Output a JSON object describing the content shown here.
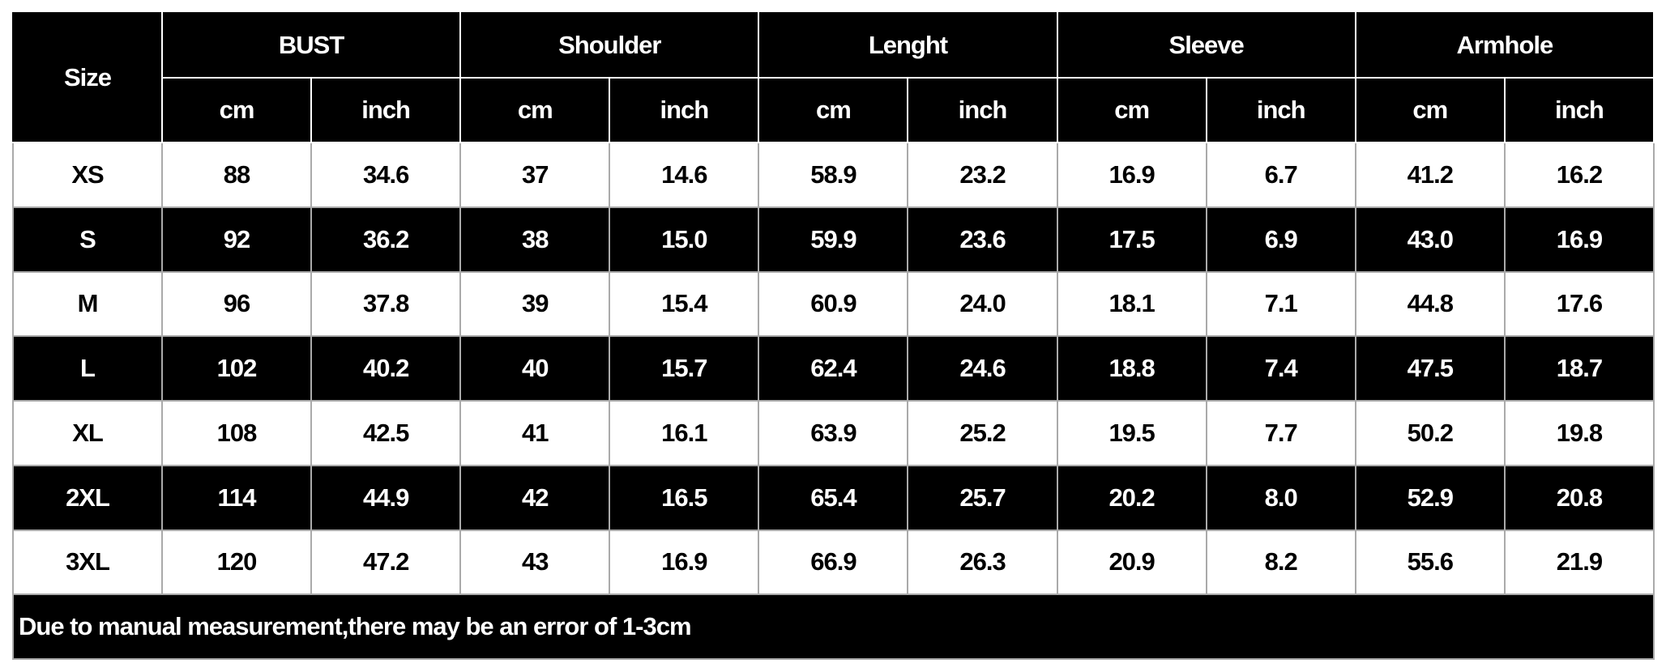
{
  "table": {
    "size_header": "Size",
    "groups": [
      "BUST",
      "Shoulder",
      "Lenght",
      "Sleeve",
      "Armhole"
    ],
    "units": [
      "cm",
      "inch"
    ],
    "rows": [
      {
        "size": "XS",
        "values": [
          "88",
          "34.6",
          "37",
          "14.6",
          "58.9",
          "23.2",
          "16.9",
          "6.7",
          "41.2",
          "16.2"
        ],
        "theme": "light"
      },
      {
        "size": "S",
        "values": [
          "92",
          "36.2",
          "38",
          "15.0",
          "59.9",
          "23.6",
          "17.5",
          "6.9",
          "43.0",
          "16.9"
        ],
        "theme": "dark"
      },
      {
        "size": "M",
        "values": [
          "96",
          "37.8",
          "39",
          "15.4",
          "60.9",
          "24.0",
          "18.1",
          "7.1",
          "44.8",
          "17.6"
        ],
        "theme": "light"
      },
      {
        "size": "L",
        "values": [
          "102",
          "40.2",
          "40",
          "15.7",
          "62.4",
          "24.6",
          "18.8",
          "7.4",
          "47.5",
          "18.7"
        ],
        "theme": "dark"
      },
      {
        "size": "XL",
        "values": [
          "108",
          "42.5",
          "41",
          "16.1",
          "63.9",
          "25.2",
          "19.5",
          "7.7",
          "50.2",
          "19.8"
        ],
        "theme": "light"
      },
      {
        "size": "2XL",
        "values": [
          "114",
          "44.9",
          "42",
          "16.5",
          "65.4",
          "25.7",
          "20.2",
          "8.0",
          "52.9",
          "20.8"
        ],
        "theme": "dark"
      },
      {
        "size": "3XL",
        "values": [
          "120",
          "47.2",
          "43",
          "16.9",
          "66.9",
          "26.3",
          "20.9",
          "8.2",
          "55.6",
          "21.9"
        ],
        "theme": "light"
      }
    ],
    "footnote": "Due to manual measurement,there may be an error of 1-3cm",
    "colors": {
      "dark": "#000000",
      "light": "#ffffff",
      "grid": "#aaaaaa"
    }
  }
}
